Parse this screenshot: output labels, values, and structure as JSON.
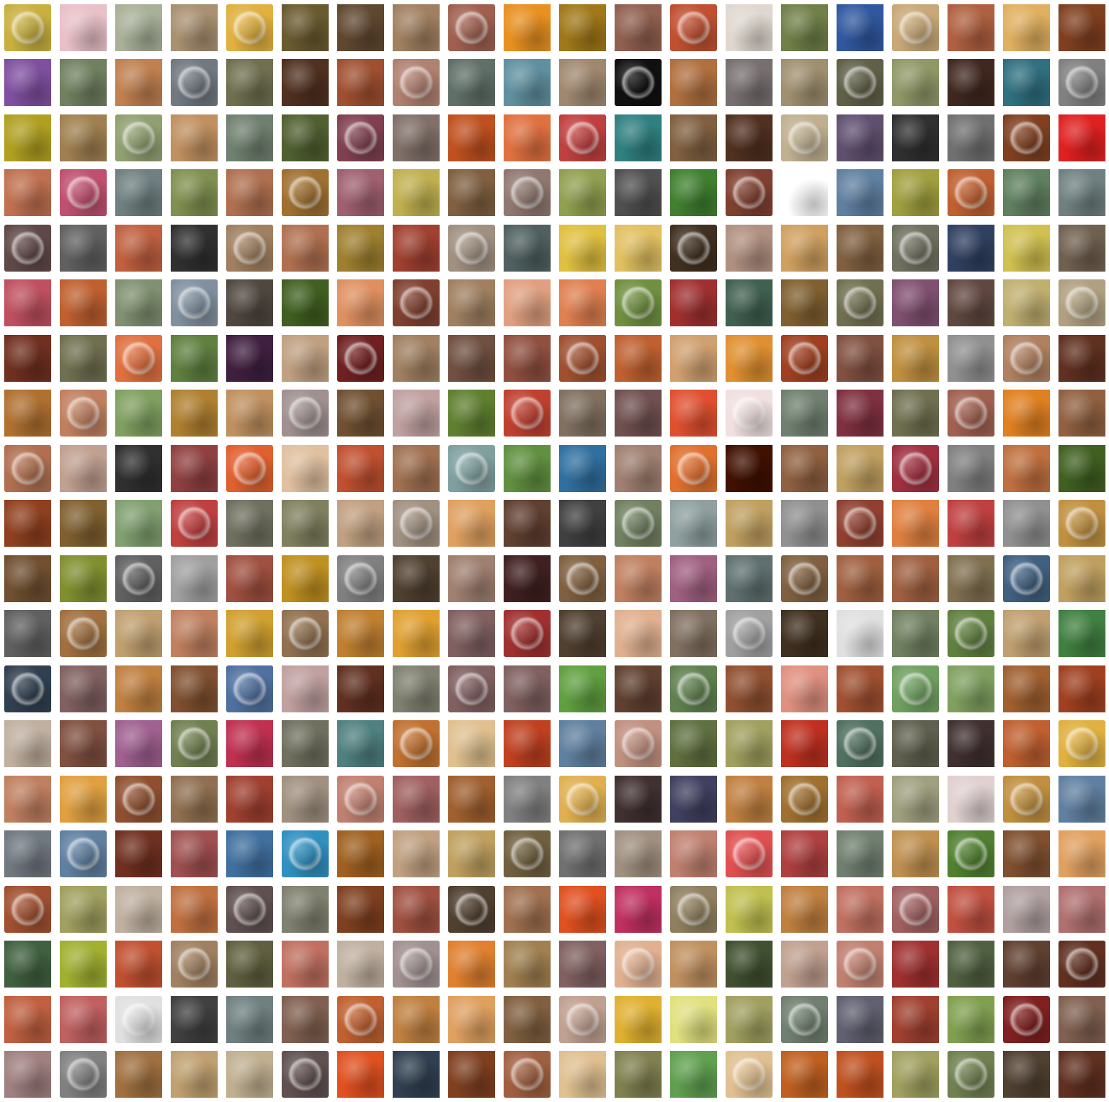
{
  "grid": {
    "rows": 20,
    "cols": 20,
    "colors": [
      [
        "#c8b040",
        "#e8c0c8",
        "#a8b098",
        "#a89070",
        "#e0b040",
        "#6a5a30",
        "#604830",
        "#a08060",
        "#a06050",
        "#e89020",
        "#a07818",
        "#906050",
        "#c05030",
        "#e0d8d0",
        "#708048",
        "#3058a0",
        "#c8a878",
        "#b06040",
        "#e0b060",
        "#804020"
      ],
      [
        "#8050a0",
        "#708060",
        "#c08050",
        "#707880",
        "#707050",
        "#503020",
        "#a05030",
        "#b08070",
        "#607068",
        "#6090a0",
        "#a08870",
        "#101010",
        "#b07040",
        "#787070",
        "#a09070",
        "#606048",
        "#909868",
        "#402820",
        "#307080",
        "#808080"
      ],
      [
        "#b0a020",
        "#a08050",
        "#90a070",
        "#c09060",
        "#708070",
        "#506030",
        "#804050",
        "#807068",
        "#c05020",
        "#e07040",
        "#c04040",
        "#308080",
        "#806040",
        "#503020",
        "#c0b090",
        "#605070",
        "#303030",
        "#707070",
        "#804020",
        "#e02020"
      ],
      [
        "#c07050",
        "#c05070",
        "#708080",
        "#809050",
        "#b07050",
        "#a07030",
        "#a06070",
        "#c0b050",
        "#806040",
        "#907870",
        "#90a050",
        "#505050",
        "#408030",
        "#804030",
        "#ffffff",
        "#6080a0",
        "#a0a040",
        "#c06030",
        "#608060",
        "#708080"
      ],
      [
        "#604848",
        "#606060",
        "#c06040",
        "#303030",
        "#a08060",
        "#b07050",
        "#a08030",
        "#a04030",
        "#a09080",
        "#506060",
        "#e0c040",
        "#e0c060",
        "#403020",
        "#b09080",
        "#d0a060",
        "#806040",
        "#707060",
        "#304060",
        "#d0c050",
        "#706050"
      ],
      [
        "#c05060",
        "#c06030",
        "#809070",
        "#8090a0",
        "#504840",
        "#406020",
        "#e09060",
        "#804030",
        "#a08060",
        "#e0a080",
        "#e08050",
        "#709040",
        "#a03030",
        "#406050",
        "#806030",
        "#707050",
        "#805070",
        "#604840",
        "#c0b070",
        "#b0a080"
      ],
      [
        "#703020",
        "#707050",
        "#e07040",
        "#608040",
        "#402040",
        "#c0a080",
        "#702020",
        "#a08060",
        "#705040",
        "#905040",
        "#a05030",
        "#c06030",
        "#d0a070",
        "#e09030",
        "#a04020",
        "#805040",
        "#c09040",
        "#909090",
        "#b08060",
        "#603020"
      ],
      [
        "#b07030",
        "#c08060",
        "#80a060",
        "#b08030",
        "#c09060",
        "#a09090",
        "#705030",
        "#c0a0a0",
        "#608030",
        "#c04030",
        "#807060",
        "#705050",
        "#e05030",
        "#f0e0e0",
        "#708070",
        "#803040",
        "#707050",
        "#a06050",
        "#e08020",
        "#906040"
      ],
      [
        "#b07050",
        "#c0a090",
        "#303030",
        "#904040",
        "#e06030",
        "#e0c0a0",
        "#c05030",
        "#a07050",
        "#80a0a0",
        "#609040",
        "#3070a0",
        "#a08070",
        "#e07030",
        "#401000",
        "#906040",
        "#c0a060",
        "#a03040",
        "#808080",
        "#c07040",
        "#406020"
      ],
      [
        "#904020",
        "#806030",
        "#80a070",
        "#c04040",
        "#707060",
        "#808060",
        "#c0a080",
        "#a09080",
        "#e0a060",
        "#604030",
        "#404040",
        "#708060",
        "#90a0a0",
        "#c0a060",
        "#909090",
        "#904030",
        "#e08040",
        "#c04040",
        "#909090",
        "#c09040"
      ],
      [
        "#705030",
        "#809030",
        "#606060",
        "#a0a0a0",
        "#a05040",
        "#c09020",
        "#808080",
        "#504030",
        "#a08070",
        "#402020",
        "#806040",
        "#c08060",
        "#a06080",
        "#607070",
        "#806040",
        "#a06040",
        "#a06040",
        "#807050",
        "#406080",
        "#c0a060"
      ],
      [
        "#606060",
        "#a07040",
        "#c0a070",
        "#c08060",
        "#d0a030",
        "#907050",
        "#c08030",
        "#e0a030",
        "#806060",
        "#a03030",
        "#504030",
        "#e0b090",
        "#807060",
        "#a0a0a0",
        "#403020",
        "#e0e0e0",
        "#708060",
        "#608040",
        "#c0a070",
        "#408040"
      ],
      [
        "#304050",
        "#806060",
        "#c08040",
        "#805030",
        "#5070a0",
        "#c0a0a0",
        "#603020",
        "#808070",
        "#806060",
        "#806060",
        "#60a040",
        "#604030",
        "#608050",
        "#905030",
        "#e09080",
        "#a05030",
        "#70a060",
        "#80a060",
        "#a06030",
        "#a04020"
      ],
      [
        "#c0b0a0",
        "#805040",
        "#a06090",
        "#708050",
        "#c03050",
        "#707060",
        "#508080",
        "#c07030",
        "#e0c090",
        "#c04020",
        "#6080a0",
        "#c09080",
        "#607040",
        "#a0a060",
        "#c03020",
        "#507060",
        "#606050",
        "#403030",
        "#c06030",
        "#e0b040"
      ],
      [
        "#c08060",
        "#e0a040",
        "#905030",
        "#907050",
        "#a04030",
        "#a09080",
        "#c08070",
        "#a06060",
        "#a06030",
        "#808080",
        "#e0b050",
        "#403030",
        "#404060",
        "#c08040",
        "#a07030",
        "#c06050",
        "#a0a080",
        "#e0d0d0",
        "#c09040",
        "#6080a0"
      ],
      [
        "#707880",
        "#6080a0",
        "#703020",
        "#a05050",
        "#4070a0",
        "#3090c0",
        "#a06020",
        "#c0a080",
        "#c0a060",
        "#706040",
        "#707070",
        "#a09080",
        "#c08070",
        "#e05050",
        "#b04040",
        "#708070",
        "#c09050",
        "#508030",
        "#805030",
        "#e0a060"
      ],
      [
        "#a05030",
        "#a0a060",
        "#c0b0a0",
        "#c07040",
        "#605050",
        "#808070",
        "#804020",
        "#a05040",
        "#504030",
        "#a07050",
        "#e05020",
        "#c03060",
        "#908060",
        "#c0c050",
        "#c08040",
        "#c07060",
        "#a06060",
        "#c05040",
        "#b0a0a0",
        "#b07070"
      ],
      [
        "#406040",
        "#a0b030",
        "#c05030",
        "#a08060",
        "#606040",
        "#c07060",
        "#c0b0a0",
        "#a09090",
        "#e08030",
        "#a08050",
        "#806060",
        "#e0b090",
        "#c09060",
        "#405030",
        "#c0a090",
        "#c08070",
        "#a03030",
        "#506040",
        "#604030",
        "#603020"
      ],
      [
        "#c06040",
        "#c06060",
        "#e0e0e0",
        "#404040",
        "#708080",
        "#806050",
        "#c06030",
        "#c08040",
        "#e0a060",
        "#806040",
        "#c0a090",
        "#e0b030",
        "#e0e080",
        "#a0a060",
        "#708070",
        "#606070",
        "#a04030",
        "#80a050",
        "#802020",
        "#806050"
      ],
      [
        "#a08080",
        "#808080",
        "#a07040",
        "#c0a070",
        "#c0b090",
        "#605050",
        "#e05020",
        "#304050",
        "#804020",
        "#a06040",
        "#e0c090",
        "#808050",
        "#60a050",
        "#e0c090",
        "#c06020",
        "#c05020",
        "#a0a060",
        "#708050",
        "#504030",
        "#603020"
      ]
    ]
  }
}
